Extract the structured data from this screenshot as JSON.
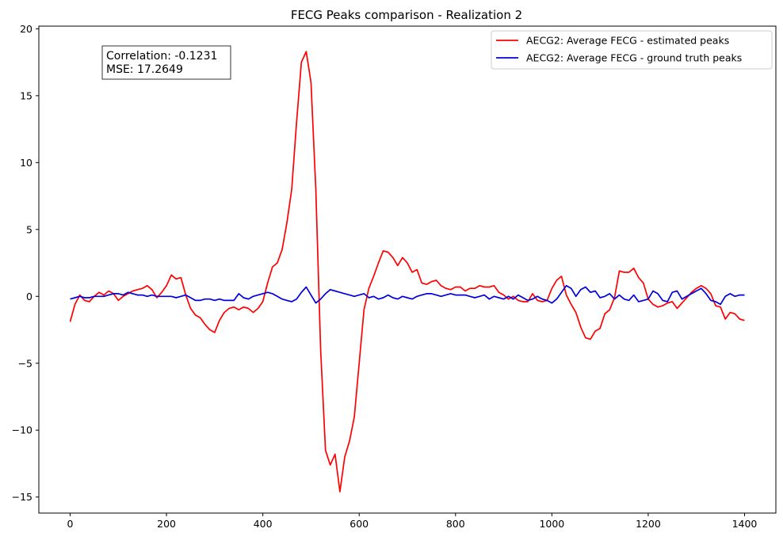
{
  "chart_data": {
    "type": "line",
    "title": "FECG Peaks comparison - Realization 2",
    "xlabel": "",
    "ylabel": "",
    "xlim": [
      -65,
      1465
    ],
    "ylim": [
      -16.2,
      20.2
    ],
    "xticks": [
      0,
      200,
      400,
      600,
      800,
      1000,
      1200,
      1400
    ],
    "yticks": [
      -15,
      -10,
      -5,
      0,
      5,
      10,
      15,
      20
    ],
    "grid": false,
    "legend_position": "top-right",
    "annotation": {
      "lines": [
        "Correlation: -0.1231",
        "MSE: 17.2649"
      ],
      "position": "top-left"
    },
    "series": [
      {
        "name": "AECG2: Average FECG - estimated peaks",
        "color": "#ff0000",
        "x": [
          0,
          10,
          20,
          30,
          40,
          50,
          60,
          70,
          80,
          90,
          100,
          110,
          120,
          130,
          140,
          150,
          160,
          170,
          180,
          190,
          200,
          210,
          220,
          230,
          240,
          250,
          260,
          270,
          280,
          290,
          300,
          310,
          320,
          330,
          340,
          350,
          360,
          370,
          380,
          390,
          400,
          410,
          420,
          430,
          440,
          450,
          460,
          470,
          480,
          490,
          500,
          510,
          520,
          530,
          540,
          550,
          560,
          570,
          580,
          590,
          600,
          610,
          620,
          630,
          640,
          650,
          660,
          670,
          680,
          690,
          700,
          710,
          720,
          730,
          740,
          750,
          760,
          770,
          780,
          790,
          800,
          810,
          820,
          830,
          840,
          850,
          860,
          870,
          880,
          890,
          900,
          910,
          920,
          930,
          940,
          950,
          960,
          970,
          980,
          990,
          1000,
          1010,
          1020,
          1030,
          1040,
          1050,
          1060,
          1070,
          1080,
          1090,
          1100,
          1110,
          1120,
          1130,
          1140,
          1150,
          1160,
          1170,
          1180,
          1190,
          1200,
          1210,
          1220,
          1230,
          1240,
          1250,
          1260,
          1270,
          1280,
          1290,
          1300,
          1310,
          1320,
          1330,
          1340,
          1350,
          1360,
          1370,
          1380,
          1390,
          1400
        ],
        "values": [
          -1.9,
          -0.6,
          0.1,
          -0.3,
          -0.4,
          0.0,
          0.3,
          0.1,
          0.4,
          0.2,
          -0.3,
          0.0,
          0.2,
          0.4,
          0.5,
          0.6,
          0.8,
          0.5,
          -0.1,
          0.3,
          0.8,
          1.6,
          1.3,
          1.4,
          0.1,
          -0.9,
          -1.4,
          -1.6,
          -2.1,
          -2.5,
          -2.7,
          -1.8,
          -1.2,
          -0.9,
          -0.8,
          -1.0,
          -0.8,
          -0.9,
          -1.2,
          -0.9,
          -0.4,
          1.0,
          2.2,
          2.5,
          3.5,
          5.5,
          8.0,
          13.0,
          17.5,
          18.3,
          16.0,
          8.0,
          -4.0,
          -11.5,
          -12.6,
          -11.8,
          -14.6,
          -12.0,
          -10.8,
          -9.0,
          -5.0,
          -1.0,
          0.6,
          1.5,
          2.5,
          3.4,
          3.3,
          2.9,
          2.3,
          2.9,
          2.5,
          1.8,
          2.0,
          1.0,
          0.9,
          1.1,
          1.2,
          0.8,
          0.6,
          0.5,
          0.7,
          0.7,
          0.4,
          0.6,
          0.6,
          0.8,
          0.7,
          0.7,
          0.8,
          0.3,
          0.1,
          -0.2,
          0.0,
          -0.3,
          -0.4,
          -0.4,
          0.2,
          -0.3,
          -0.4,
          -0.3,
          0.6,
          1.2,
          1.5,
          0.1,
          -0.6,
          -1.2,
          -2.3,
          -3.1,
          -3.2,
          -2.6,
          -2.4,
          -1.3,
          -1.0,
          -0.1,
          1.9,
          1.8,
          1.8,
          2.1,
          1.4,
          1.0,
          -0.2,
          -0.6,
          -0.8,
          -0.7,
          -0.5,
          -0.4,
          -0.9,
          -0.5,
          -0.1,
          0.3,
          0.6,
          0.8,
          0.6,
          0.2,
          -0.7,
          -0.8,
          -1.7,
          -1.2,
          -1.3,
          -1.7,
          -1.8
        ]
      },
      {
        "name": "AECG2: Average FECG - ground truth peaks",
        "color": "#0000dd",
        "x": [
          0,
          10,
          20,
          30,
          40,
          50,
          60,
          70,
          80,
          90,
          100,
          110,
          120,
          130,
          140,
          150,
          160,
          170,
          180,
          190,
          200,
          210,
          220,
          230,
          240,
          250,
          260,
          270,
          280,
          290,
          300,
          310,
          320,
          330,
          340,
          350,
          360,
          370,
          380,
          390,
          400,
          410,
          420,
          430,
          440,
          450,
          460,
          470,
          480,
          490,
          500,
          510,
          520,
          530,
          540,
          550,
          560,
          570,
          580,
          590,
          600,
          610,
          620,
          630,
          640,
          650,
          660,
          670,
          680,
          690,
          700,
          710,
          720,
          730,
          740,
          750,
          760,
          770,
          780,
          790,
          800,
          810,
          820,
          830,
          840,
          850,
          860,
          870,
          880,
          890,
          900,
          910,
          920,
          930,
          940,
          950,
          960,
          970,
          980,
          990,
          1000,
          1010,
          1020,
          1030,
          1040,
          1050,
          1060,
          1070,
          1080,
          1090,
          1100,
          1110,
          1120,
          1130,
          1140,
          1150,
          1160,
          1170,
          1180,
          1190,
          1200,
          1210,
          1220,
          1230,
          1240,
          1250,
          1260,
          1270,
          1280,
          1290,
          1300,
          1310,
          1320,
          1330,
          1340,
          1350,
          1360,
          1370,
          1380,
          1390,
          1400
        ],
        "values": [
          -0.2,
          -0.1,
          0.0,
          -0.1,
          -0.1,
          0.0,
          0.0,
          0.0,
          0.1,
          0.2,
          0.2,
          0.1,
          0.3,
          0.2,
          0.1,
          0.1,
          0.0,
          0.1,
          0.0,
          0.0,
          0.0,
          0.0,
          -0.1,
          0.0,
          0.1,
          -0.1,
          -0.3,
          -0.3,
          -0.2,
          -0.2,
          -0.3,
          -0.2,
          -0.3,
          -0.3,
          -0.3,
          0.2,
          -0.1,
          -0.2,
          0.0,
          0.1,
          0.2,
          0.3,
          0.2,
          0.0,
          -0.2,
          -0.3,
          -0.4,
          -0.2,
          0.3,
          0.7,
          0.1,
          -0.5,
          -0.2,
          0.2,
          0.5,
          0.4,
          0.3,
          0.2,
          0.1,
          0.0,
          0.1,
          0.2,
          -0.1,
          0.0,
          -0.2,
          -0.1,
          0.1,
          -0.1,
          -0.2,
          0.0,
          -0.1,
          -0.2,
          0.0,
          0.1,
          0.2,
          0.2,
          0.1,
          0.0,
          0.1,
          0.2,
          0.1,
          0.1,
          0.1,
          0.0,
          -0.1,
          0.0,
          0.1,
          -0.2,
          0.0,
          -0.1,
          -0.2,
          0.0,
          -0.2,
          0.1,
          -0.1,
          -0.3,
          -0.2,
          0.0,
          -0.2,
          -0.3,
          -0.5,
          -0.2,
          0.3,
          0.8,
          0.6,
          0.0,
          0.5,
          0.7,
          0.3,
          0.4,
          -0.1,
          0.0,
          0.2,
          -0.2,
          0.1,
          -0.2,
          -0.3,
          0.1,
          -0.4,
          -0.3,
          -0.2,
          0.4,
          0.2,
          -0.3,
          -0.4,
          0.3,
          0.4,
          -0.2,
          0.0,
          0.2,
          0.4,
          0.6,
          0.2,
          -0.3,
          -0.4,
          -0.6,
          0.0,
          0.2,
          0.0,
          0.1,
          0.1
        ]
      }
    ]
  }
}
